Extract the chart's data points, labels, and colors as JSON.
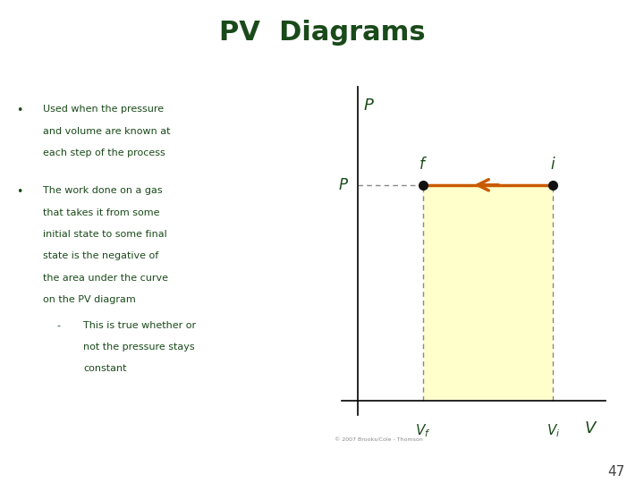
{
  "title": "PV  Diagrams",
  "title_color": "#1a4a1a",
  "title_fontsize": 22,
  "bg_color": "#ffffff",
  "text_color": "#1a4a1a",
  "bullet1_lines": [
    "Used when the pressure",
    "and volume are known at",
    "each step of the process"
  ],
  "bullet2_lines": [
    "The work done on a gas",
    "that takes it from some",
    "initial state to some final",
    "state is the negative of",
    "the area under the curve",
    "on the PV diagram"
  ],
  "sub_bullet_lines": [
    "This is true whether or",
    "not the pressure stays",
    "constant"
  ],
  "diagram_fill_color": "#ffffcc",
  "arrow_color": "#c85a00",
  "axis_color": "#000000",
  "dashed_color": "#888888",
  "dot_color": "#111111",
  "label_color": "#1a4a1a",
  "Vf": 1.0,
  "Vi": 3.0,
  "P": 2.2,
  "Pmax": 3.2,
  "Vmax": 3.8
}
